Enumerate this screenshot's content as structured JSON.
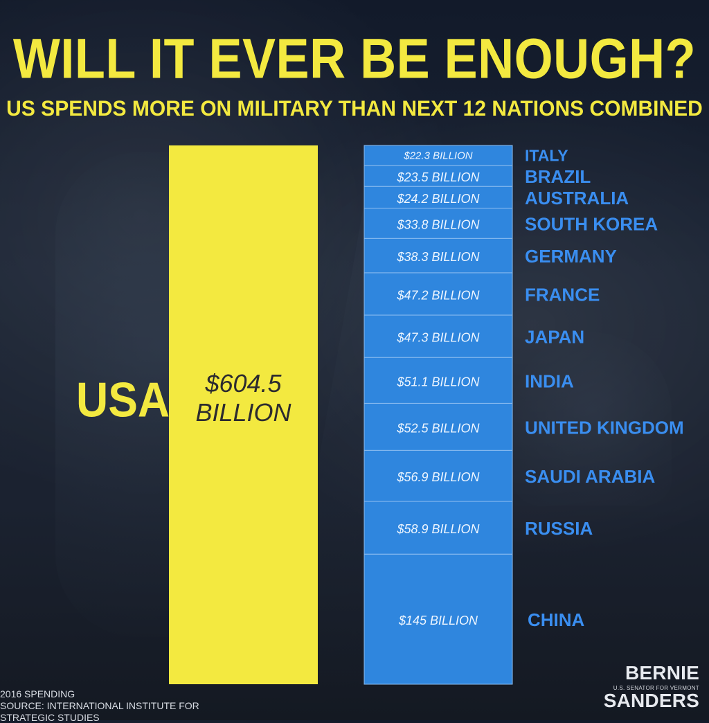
{
  "title": "WILL IT EVER BE ENOUGH?",
  "subtitle": "US SPENDS MORE ON MILITARY THAN NEXT 12 NATIONS COMBINED",
  "footer": {
    "line1": "2016 SPENDING",
    "line2": "SOURCE: INTERNATIONAL INSTITUTE FOR STRATEGIC STUDIES"
  },
  "branding": {
    "top": "BERNIE",
    "sub": "U.S. SENATOR for VERMONT",
    "bottom": "SANDERS"
  },
  "colors": {
    "yellow": "#f3e940",
    "blue": "#2f86de",
    "blue_border": "#8dbdf0",
    "text_blue": "#3a8ef0"
  },
  "chart_data": {
    "type": "bar",
    "main": {
      "label": "USA",
      "value": 604.5,
      "display_line1": "$604.5",
      "display_line2": "BILLION"
    },
    "stacked": [
      {
        "country": "ITALY",
        "value": 22.3,
        "label": "$22.3 BILLION"
      },
      {
        "country": "BRAZIL",
        "value": 23.5,
        "label": "$23.5 BILLION"
      },
      {
        "country": "AUSTRALIA",
        "value": 24.2,
        "label": "$24.2  BILLION"
      },
      {
        "country": "SOUTH KOREA",
        "value": 33.8,
        "label": "$33.8  BILLION"
      },
      {
        "country": "GERMANY",
        "value": 38.3,
        "label": "$38.3  BILLION"
      },
      {
        "country": "FRANCE",
        "value": 47.2,
        "label": "$47.2  BILLION"
      },
      {
        "country": "JAPAN",
        "value": 47.3,
        "label": "$47.3  BILLION"
      },
      {
        "country": "INDIA",
        "value": 51.1,
        "label": "$51.1  BILLION"
      },
      {
        "country": "UNITED KINGDOM",
        "value": 52.5,
        "label": "$52.5  BILLION"
      },
      {
        "country": "SAUDI ARABIA",
        "value": 56.9,
        "label": "$56.9 BILLION"
      },
      {
        "country": "RUSSIA",
        "value": 58.9,
        "label": "$58.9 BILLION"
      },
      {
        "country": "CHINA",
        "value": 145,
        "label": "$145 BILLION"
      }
    ]
  }
}
